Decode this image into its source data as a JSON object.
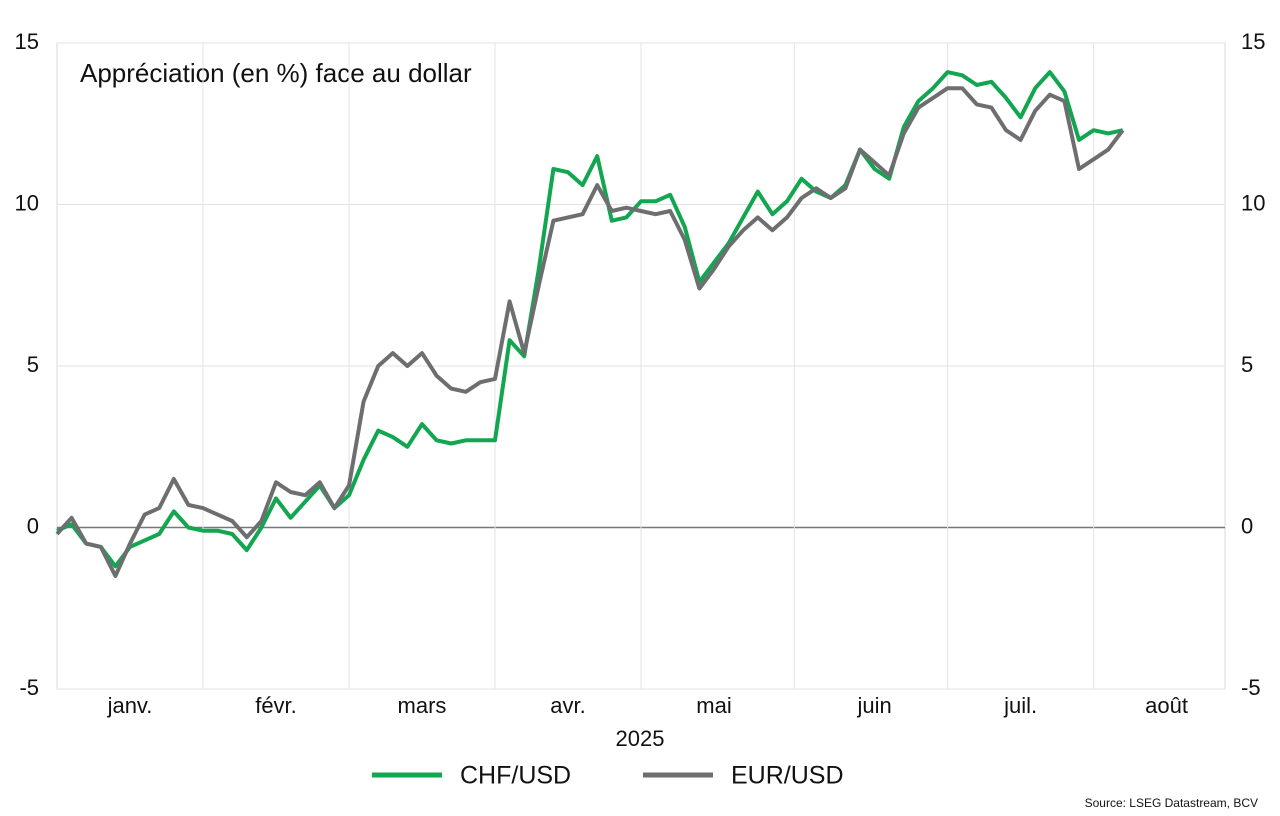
{
  "chart_data": {
    "type": "line",
    "title": "Appréciation (en %) face au dollar",
    "xlabel": "2025",
    "source": "Source: LSEG Datastream, BCV",
    "categories": [
      null,
      null,
      null,
      null,
      null,
      "janv.",
      null,
      null,
      null,
      null,
      null,
      null,
      null,
      null,
      null,
      "févr.",
      null,
      null,
      null,
      null,
      null,
      null,
      null,
      null,
      null,
      "mars",
      null,
      null,
      null,
      null,
      null,
      null,
      null,
      null,
      null,
      "avr.",
      null,
      null,
      null,
      null,
      null,
      null,
      null,
      null,
      null,
      "mai",
      null,
      null,
      null,
      null,
      null,
      null,
      null,
      null,
      null,
      null,
      "juin",
      null,
      null,
      null,
      null,
      null,
      null,
      null,
      null,
      null,
      "juil.",
      null,
      null,
      null,
      null,
      null,
      null,
      null,
      null,
      null,
      "août",
      null,
      null,
      null,
      null
    ],
    "series": [
      {
        "name": "CHF/USD",
        "color": "#12a650",
        "values": [
          -0.1,
          0.1,
          -0.5,
          -0.6,
          -1.2,
          -0.6,
          -0.4,
          -0.2,
          0.5,
          0.0,
          -0.1,
          -0.1,
          -0.2,
          -0.7,
          0.0,
          0.9,
          0.3,
          0.8,
          1.3,
          0.6,
          1.0,
          2.1,
          3.0,
          2.8,
          2.5,
          3.2,
          2.7,
          2.6,
          2.7,
          2.7,
          2.7,
          5.8,
          5.3,
          8.0,
          11.1,
          11.0,
          10.6,
          11.5,
          9.5,
          9.6,
          10.1,
          10.1,
          10.3,
          9.3,
          7.6,
          8.2,
          8.8,
          9.6,
          10.4,
          9.7,
          10.1,
          10.8,
          10.4,
          10.2,
          10.6,
          11.7,
          11.1,
          10.8,
          12.4,
          13.2,
          13.6,
          14.1,
          14.0,
          13.7,
          13.8,
          13.3,
          12.7,
          13.6,
          14.1,
          13.5,
          12.0,
          12.3,
          12.2,
          12.3,
          null,
          null,
          null,
          null,
          null,
          null,
          null
        ]
      },
      {
        "name": "EUR/USD",
        "color": "#6d6e70",
        "values": [
          -0.2,
          0.3,
          -0.5,
          -0.6,
          -1.5,
          -0.5,
          0.4,
          0.6,
          1.5,
          0.7,
          0.6,
          0.4,
          0.2,
          -0.3,
          0.2,
          1.4,
          1.1,
          1.0,
          1.4,
          0.6,
          1.3,
          3.9,
          5.0,
          5.4,
          5.0,
          5.4,
          4.7,
          4.3,
          4.2,
          4.5,
          4.6,
          7.0,
          5.4,
          7.5,
          9.5,
          9.6,
          9.7,
          10.6,
          9.8,
          9.9,
          9.8,
          9.7,
          9.8,
          8.9,
          7.4,
          8.0,
          8.7,
          9.2,
          9.6,
          9.2,
          9.6,
          10.2,
          10.5,
          10.2,
          10.5,
          11.7,
          11.3,
          10.9,
          12.2,
          13.0,
          13.3,
          13.6,
          13.6,
          13.1,
          13.0,
          12.3,
          12.0,
          12.9,
          13.4,
          13.2,
          11.1,
          11.4,
          11.7,
          12.3,
          null,
          null,
          null,
          null,
          null,
          null,
          null
        ]
      }
    ],
    "ylim": [
      -5,
      15
    ],
    "yticks": [
      -5,
      0,
      5,
      10,
      15
    ],
    "y2lim": [
      -5,
      15
    ],
    "y2ticks": [
      -5,
      0,
      5,
      10,
      15
    ],
    "grid": true
  }
}
